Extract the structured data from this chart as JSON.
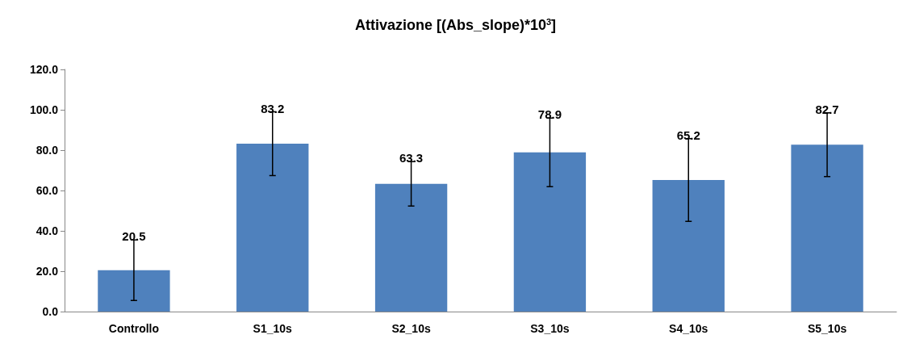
{
  "chart_data": {
    "type": "bar",
    "title": "Attivazione [(Abs_slope)*10$^{3}$]",
    "categories": [
      "Controllo",
      "S1_10s",
      "S2_10s",
      "S3_10s",
      "S4_10s",
      "S5_10s"
    ],
    "values": [
      20.5,
      83.2,
      63.3,
      78.9,
      65.2,
      82.7
    ],
    "errors": [
      15,
      15.8,
      11,
      17,
      20.5,
      15.8
    ],
    "color": "#4f81bd",
    "ylim": [
      0,
      120
    ],
    "yticks": [
      {
        "value": 0,
        "label": "0.0"
      },
      {
        "value": 20,
        "label": "20.0"
      },
      {
        "value": 40,
        "label": "40.0"
      },
      {
        "value": 60,
        "label": "60.0"
      },
      {
        "value": 80,
        "label": "80.0"
      },
      {
        "value": 100,
        "label": "100.0"
      },
      {
        "value": 120,
        "label": "120.0"
      }
    ],
    "grid": false,
    "data_labels": true
  }
}
